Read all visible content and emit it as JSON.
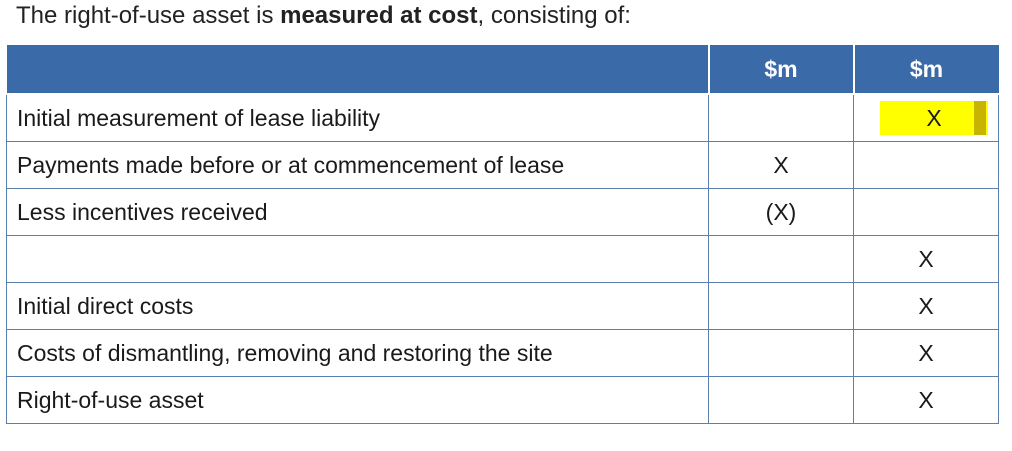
{
  "intro": {
    "before": "The right-of-use asset is ",
    "bold": "measured at cost",
    "after": ", consisting of:"
  },
  "table": {
    "headers": [
      "",
      "$m",
      "$m"
    ],
    "rows": [
      {
        "label": "Initial measurement of lease liability",
        "col1": "",
        "col2": "X",
        "highlight": true
      },
      {
        "label": "Payments made before or at commencement of lease",
        "col1": "X",
        "col2": ""
      },
      {
        "label": "Less incentives received",
        "col1": "(X)",
        "col2": ""
      },
      {
        "label": "",
        "col1": "",
        "col2": "X"
      },
      {
        "label": "Initial direct costs",
        "col1": "",
        "col2": "X"
      },
      {
        "label": "Costs of dismantling, removing and restoring the site",
        "col1": "",
        "col2": "X"
      },
      {
        "label": "Right-of-use asset",
        "col1": "",
        "col2": "X"
      }
    ]
  },
  "colors": {
    "header_bg": "#3a6aa8",
    "border": "#5b7fae",
    "highlight": "#ffff00"
  }
}
